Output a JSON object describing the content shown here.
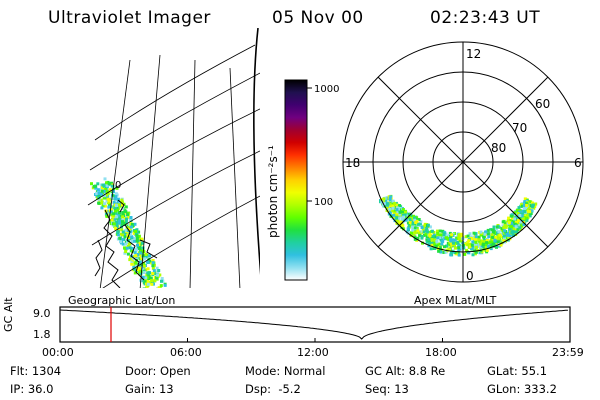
{
  "header": {
    "title": "Ultraviolet Imager",
    "date": "05 Nov 00",
    "time": "02:23:43 UT"
  },
  "colorbar": {
    "unit": "photon cm⁻²s⁻¹",
    "tick_labels": [
      "1000",
      "100"
    ],
    "colors": [
      "#000000",
      "#201050",
      "#400070",
      "#700080",
      "#a00030",
      "#d00000",
      "#ff3000",
      "#ff8000",
      "#ffd000",
      "#f0ff00",
      "#b0ff00",
      "#60ff00",
      "#20e040",
      "#20d0a0",
      "#30c0e0",
      "#90e0f0",
      "#ffffff"
    ]
  },
  "left_panel": {
    "label": "Geographic Lat/Lon",
    "marker": "0"
  },
  "right_panel": {
    "label": "Apex MLat/MLT",
    "mlt_labels": {
      "top": "12",
      "left": "18",
      "right": "6",
      "bottom": "0"
    },
    "lat_labels": [
      "60",
      "70",
      "80"
    ]
  },
  "altitude_plot": {
    "axis_label": "GC Alt",
    "y_ticks": [
      "9.0",
      "1.8"
    ],
    "x_ticks": [
      "00:00",
      "06:00",
      "12:00",
      "18:00",
      "23:59"
    ],
    "current_time_marker_hours": 2.4,
    "marker_color": "#e00000"
  },
  "info": {
    "row1": [
      {
        "key": "Flt:",
        "value": "1304"
      },
      {
        "key": "Door:",
        "value": "Open"
      },
      {
        "key": "Mode:",
        "value": "Normal"
      },
      {
        "key": "GC Alt:",
        "value": "8.8 Re"
      },
      {
        "key": "GLat:",
        "value": "55.1"
      }
    ],
    "row2": [
      {
        "key": "IP:",
        "value": "36.0"
      },
      {
        "key": "Gain:",
        "value": "13"
      },
      {
        "key": "Dsp:",
        "value": "-5.2"
      },
      {
        "key": "Seq:",
        "value": "13"
      },
      {
        "key": "GLon:",
        "value": "333.2"
      }
    ]
  }
}
